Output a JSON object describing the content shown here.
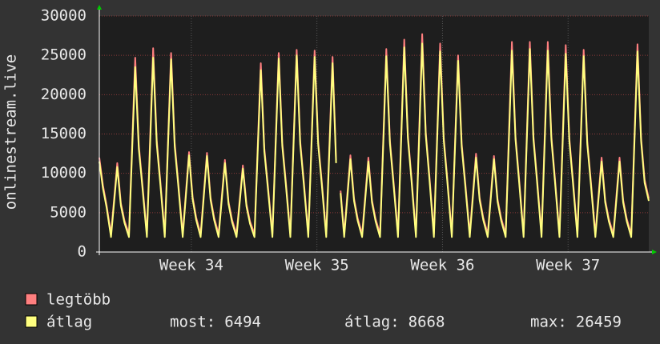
{
  "chart_data": {
    "type": "line",
    "y_label": "onlinestream.live",
    "xlim": [
      0,
      30.63
    ],
    "xticks": [
      {
        "value": 5.13,
        "label": "Week 34"
      },
      {
        "value": 12.13,
        "label": "Week 35"
      },
      {
        "value": 19.13,
        "label": "Week 36"
      },
      {
        "value": 26.13,
        "label": "Week 37"
      }
    ],
    "ylim": [
      0,
      30000
    ],
    "yticks": [
      0,
      5000,
      10000,
      15000,
      20000,
      25000,
      30000
    ],
    "grid": true,
    "x": [
      0,
      0.2,
      0.4,
      0.65,
      1,
      1.2,
      1.4,
      1.65,
      2,
      2.2,
      2.4,
      2.65,
      3,
      3.2,
      3.4,
      3.65,
      4,
      4.2,
      4.4,
      4.65,
      5,
      5.2,
      5.4,
      5.65,
      6,
      6.2,
      6.4,
      6.65,
      7,
      7.2,
      7.4,
      7.65,
      8,
      8.2,
      8.4,
      8.65,
      9,
      9.2,
      9.4,
      9.65,
      10,
      10.2,
      10.4,
      10.65,
      11,
      11.2,
      11.4,
      11.65,
      12,
      12.2,
      12.4,
      12.65,
      13,
      13.2,
      13.3,
      13.45,
      13.65,
      14,
      14.2,
      14.4,
      14.65,
      15,
      15.2,
      15.4,
      15.65,
      16,
      16.2,
      16.4,
      16.65,
      17,
      17.2,
      17.4,
      17.65,
      18,
      18.2,
      18.4,
      18.65,
      19,
      19.2,
      19.4,
      19.65,
      20,
      20.2,
      20.4,
      20.65,
      21,
      21.2,
      21.4,
      21.65,
      22,
      22.2,
      22.4,
      22.65,
      23,
      23.2,
      23.4,
      23.65,
      24,
      24.2,
      24.4,
      24.65,
      25,
      25.2,
      25.4,
      25.65,
      26,
      26.2,
      26.4,
      26.65,
      27,
      27.2,
      27.4,
      27.65,
      28,
      28.2,
      28.4,
      28.65,
      29,
      29.2,
      29.4,
      29.65,
      30,
      30.2,
      30.4,
      30.63
    ],
    "series": [
      {
        "name": "legtöbb",
        "color": "#ff7f7f",
        "values": [
          12000,
          8500,
          6000,
          2300,
          11300,
          6200,
          4000,
          2300,
          24700,
          13600,
          8600,
          2300,
          25900,
          14200,
          9100,
          2300,
          25300,
          13900,
          8900,
          2300,
          12700,
          7000,
          4400,
          2300,
          12600,
          6900,
          4400,
          2300,
          11700,
          6400,
          4100,
          2300,
          11000,
          6100,
          3900,
          2300,
          24000,
          13200,
          8400,
          2300,
          25300,
          13900,
          8900,
          2300,
          25700,
          14100,
          9000,
          2300,
          25600,
          14100,
          9000,
          2300,
          24800,
          11700,
          null,
          7800,
          2300,
          12300,
          6800,
          4300,
          2300,
          12000,
          6600,
          4200,
          2300,
          25800,
          14200,
          9000,
          2300,
          27000,
          14900,
          9500,
          2300,
          27700,
          15200,
          9700,
          2300,
          26500,
          14600,
          9300,
          2300,
          25000,
          13800,
          8800,
          2300,
          12500,
          6900,
          4400,
          2300,
          12200,
          6700,
          4300,
          2300,
          26700,
          14700,
          9300,
          2300,
          26700,
          14700,
          9300,
          2300,
          26700,
          14700,
          9300,
          2300,
          26300,
          14500,
          9200,
          2300,
          25700,
          14100,
          9000,
          2300,
          12000,
          6600,
          4200,
          2300,
          12000,
          6600,
          4200,
          2300,
          26400,
          14500,
          9200,
          6800
        ]
      },
      {
        "name": "átlag",
        "color": "#ffff7f",
        "values": [
          11500,
          8100,
          5700,
          1900,
          10800,
          5900,
          3700,
          1900,
          23500,
          13100,
          8200,
          1900,
          24700,
          13700,
          8700,
          1900,
          24500,
          13400,
          8500,
          1900,
          12300,
          6700,
          4100,
          1900,
          12200,
          6600,
          4100,
          1900,
          11300,
          6100,
          3800,
          1900,
          10600,
          5800,
          3600,
          1900,
          23100,
          12800,
          8000,
          1900,
          24600,
          13500,
          8500,
          1900,
          25000,
          13700,
          8600,
          1900,
          24800,
          13700,
          8600,
          1900,
          24000,
          11300,
          null,
          7500,
          1900,
          11800,
          6500,
          4000,
          1900,
          11500,
          6300,
          3900,
          1900,
          24900,
          13800,
          8600,
          1900,
          26000,
          14500,
          9100,
          1900,
          26500,
          14800,
          9300,
          1900,
          25500,
          14200,
          8900,
          1900,
          24300,
          13400,
          8400,
          1900,
          12000,
          6600,
          4100,
          1900,
          11800,
          6400,
          4000,
          1900,
          25600,
          14300,
          8900,
          1900,
          25800,
          14300,
          8900,
          1900,
          25600,
          14300,
          8900,
          1900,
          25200,
          14100,
          8800,
          1900,
          24900,
          13700,
          8600,
          1900,
          11500,
          6300,
          3900,
          1900,
          11500,
          6300,
          3900,
          1900,
          25500,
          14100,
          8800,
          6494
        ]
      }
    ],
    "stats": [
      {
        "label": "most:",
        "value": 6494
      },
      {
        "label": "átlag:",
        "value": 8668
      },
      {
        "label": "max:",
        "value": 26459
      }
    ]
  }
}
